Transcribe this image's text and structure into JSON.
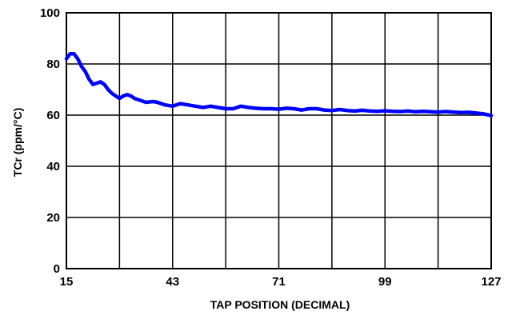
{
  "chart_data": {
    "type": "line",
    "xlabel": "TAP POSITION (DECIMAL)",
    "ylabel": "TCr (ppm/°C)",
    "xlim": [
      15,
      127
    ],
    "ylim": [
      0,
      100
    ],
    "x_ticks": [
      15,
      43,
      71,
      99,
      127
    ],
    "y_ticks": [
      0,
      20,
      40,
      60,
      80,
      100
    ],
    "grid": true,
    "line_color": "#0000FF",
    "series": [
      {
        "x": [
          15,
          16,
          17,
          18,
          19,
          20,
          21,
          22,
          23,
          24,
          25,
          26,
          27,
          28,
          29,
          30,
          31,
          32,
          33,
          34,
          35,
          36,
          37,
          38,
          39,
          40,
          41,
          43,
          45,
          47,
          49,
          51,
          53,
          55,
          57,
          59,
          61,
          63,
          65,
          67,
          69,
          71,
          73,
          75,
          77,
          79,
          81,
          83,
          85,
          87,
          89,
          91,
          93,
          95,
          97,
          99,
          101,
          103,
          105,
          107,
          109,
          111,
          113,
          115,
          117,
          119,
          121,
          123,
          125,
          127
        ],
        "y": [
          82,
          84,
          84,
          82,
          79,
          77,
          74,
          72,
          72.5,
          73,
          72,
          70,
          68.5,
          67.5,
          66.5,
          67.5,
          68,
          67.5,
          66.5,
          66,
          65.5,
          65,
          65.2,
          65.3,
          65,
          64.5,
          64,
          63.5,
          64.5,
          64,
          63.5,
          63,
          63.5,
          63,
          62.5,
          62.5,
          63.5,
          63,
          62.7,
          62.5,
          62.5,
          62.3,
          62.7,
          62.5,
          62,
          62.5,
          62.5,
          62,
          61.8,
          62.2,
          61.8,
          61.6,
          61.9,
          61.6,
          61.5,
          61.7,
          61.5,
          61.4,
          61.6,
          61.3,
          61.5,
          61.3,
          61.2,
          61.4,
          61.2,
          61,
          61.1,
          60.8,
          60.5,
          59.8
        ]
      }
    ]
  }
}
